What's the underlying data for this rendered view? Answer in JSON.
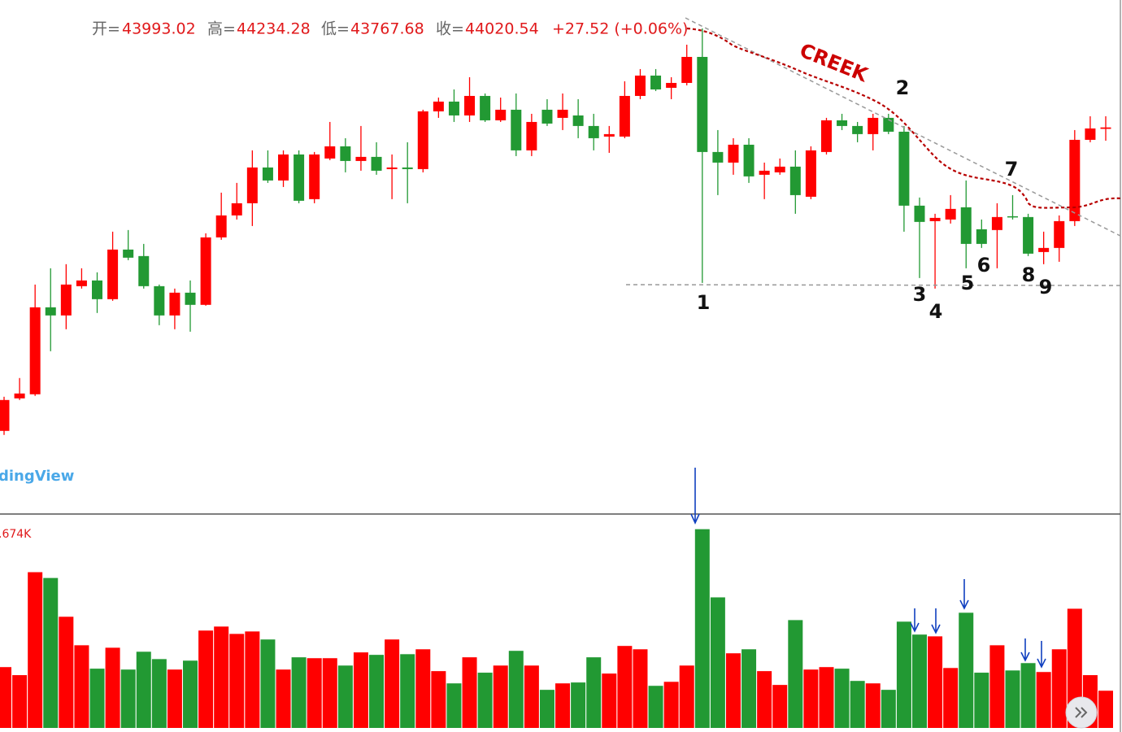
{
  "chart_data": [
    {
      "type": "candlestick",
      "open": [
        38235,
        38855,
        38933,
        40591,
        40436,
        40994,
        41103,
        40746,
        41692,
        41568,
        40994,
        40436,
        40870,
        40638,
        41924,
        42343,
        42575,
        43257,
        43009,
        43505,
        42653,
        43428,
        43660,
        43381,
        43459,
        43226,
        43257,
        43226,
        44327,
        44513,
        44249,
        44621,
        44156,
        44358,
        43583,
        44358,
        44203,
        44249,
        44048,
        43846,
        43846,
        44621,
        45009,
        44776,
        44869,
        45365,
        43552,
        43350,
        43691,
        43118,
        43164,
        43273,
        42699,
        43552,
        44156,
        44048,
        43893,
        44203,
        43939,
        42529,
        42234,
        42265,
        42498,
        42079,
        42064,
        42327,
        42312,
        41645,
        41723,
        42234,
        43784,
        43993.02
      ],
      "high": [
        38886,
        39243,
        41025,
        41335,
        41413,
        41335,
        41258,
        42033,
        42064,
        41800,
        41025,
        40948,
        41103,
        42002,
        42777,
        42963,
        43583,
        43583,
        43583,
        43583,
        43552,
        44125,
        43815,
        44048,
        43738,
        43505,
        43738,
        44358,
        44590,
        44745,
        44978,
        44668,
        44590,
        44668,
        44280,
        44559,
        44668,
        44559,
        44280,
        44048,
        44900,
        45133,
        45133,
        44978,
        45598,
        45908,
        43970,
        43815,
        43815,
        43350,
        43428,
        43583,
        43660,
        44203,
        44280,
        44125,
        44280,
        44280,
        44048,
        42684,
        42374,
        42730,
        43009,
        42265,
        42575,
        42730,
        42374,
        42033,
        42343,
        43970,
        44234,
        44234.28
      ],
      "low": [
        38158,
        38824,
        38902,
        39754,
        40173,
        40948,
        40483,
        40715,
        41490,
        40948,
        40250,
        40173,
        40126,
        40622,
        41878,
        42265,
        42141,
        42963,
        42885,
        42575,
        42575,
        43397,
        43164,
        43195,
        43118,
        42653,
        42575,
        43164,
        44203,
        44125,
        44125,
        44125,
        44125,
        43474,
        43474,
        44048,
        43970,
        43815,
        43583,
        43536,
        43815,
        44559,
        44714,
        44559,
        44823,
        41056,
        42730,
        43118,
        42963,
        42653,
        43118,
        42374,
        42653,
        43505,
        43970,
        43738,
        43583,
        43893,
        42033,
        41149,
        40948,
        42188,
        41335,
        41723,
        41335,
        42265,
        41568,
        41413,
        41459,
        42141,
        43738,
        43767.68
      ],
      "close": [
        38824,
        38948,
        40591,
        40436,
        41025,
        41103,
        40746,
        41692,
        41537,
        40994,
        40436,
        40870,
        40638,
        41924,
        42343,
        42575,
        43257,
        43009,
        43505,
        42622,
        43505,
        43660,
        43381,
        43459,
        43195,
        43257,
        43226,
        44327,
        44513,
        44249,
        44621,
        44156,
        44358,
        43583,
        44125,
        44094,
        44358,
        44048,
        43815,
        43893,
        44621,
        45009,
        44745,
        44869,
        45365,
        43552,
        43350,
        43691,
        43087,
        43195,
        43273,
        42730,
        43583,
        44156,
        44048,
        43893,
        44203,
        43939,
        42529,
        42219,
        42296,
        42467,
        41800,
        41800,
        42312,
        42312,
        41614,
        41723,
        42234,
        43784,
        44001,
        44020.54
      ],
      "ylim": [
        36650,
        46450
      ],
      "up_color": "#ff0000",
      "down_color": "#229933",
      "ohlc_labels": [
        "开=",
        "高=",
        "低=",
        "收="
      ],
      "change_label": "+27.52 (+0.06%)",
      "annotations": [
        "CREEK",
        "1",
        "2",
        "3",
        "4",
        "5",
        "6",
        "7",
        "8",
        "9"
      ],
      "watermark": "dingView"
    },
    {
      "type": "bar",
      "values": [
        2.73,
        2.37,
        6.99,
        6.73,
        4.99,
        3.71,
        2.66,
        3.6,
        2.62,
        3.42,
        3.09,
        2.62,
        3.02,
        4.37,
        4.55,
        4.22,
        4.33,
        3.97,
        2.62,
        3.17,
        3.13,
        3.13,
        2.8,
        3.39,
        3.28,
        3.97,
        3.31,
        3.53,
        2.55,
        2.0,
        3.17,
        2.48,
        2.8,
        3.46,
        2.8,
        1.71,
        2.0,
        2.04,
        3.17,
        2.44,
        3.68,
        3.53,
        1.89,
        2.07,
        2.8,
        8.92,
        5.86,
        3.35,
        3.53,
        2.55,
        1.93,
        4.84,
        2.62,
        2.73,
        2.66,
        2.11,
        2.0,
        1.71,
        4.77,
        4.19,
        4.11,
        2.69,
        5.17,
        2.48,
        3.71,
        2.58,
        2.91,
        2.51,
        3.53,
        5.35,
        2.37,
        1.67
      ],
      "ylim": [
        0,
        9.6
      ],
      "volume_label": ".674K"
    }
  ]
}
